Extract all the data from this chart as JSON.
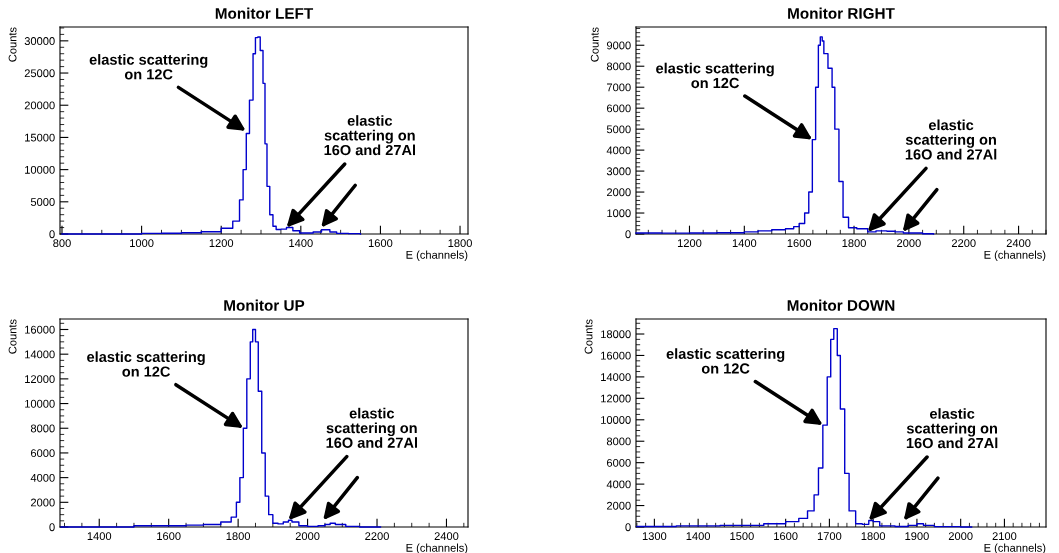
{
  "chart_data": [
    {
      "type": "step",
      "title": "Monitor LEFT",
      "xlabel": "E (channels)",
      "ylabel": "Counts",
      "xlim": [
        795,
        1820
      ],
      "ylim": [
        0,
        32150
      ],
      "xticks": [
        800,
        1000,
        1200,
        1400,
        1600,
        1800
      ],
      "yticks": [
        0,
        5000,
        10000,
        15000,
        20000,
        25000,
        30000
      ],
      "grid": false,
      "legend": false,
      "annotations": [
        {
          "text": "elastic scattering\non 12C",
          "x": 1262,
          "y": 16000
        },
        {
          "text": "elastic\nscattering on\n16O and 27Al",
          "x": 1364,
          "y": 1000
        }
      ],
      "series": [
        {
          "color": "#0000cc",
          "x": [
            800,
            900,
            995,
            1000,
            1050,
            1100,
            1150,
            1200,
            1229,
            1246,
            1255,
            1263,
            1271,
            1280,
            1286,
            1292,
            1298,
            1305,
            1310,
            1315,
            1322,
            1330,
            1338,
            1350,
            1364,
            1380,
            1397,
            1415,
            1431,
            1452,
            1473,
            1490,
            1520,
            1550
          ],
          "values": [
            0,
            0,
            0,
            100,
            120,
            200,
            350,
            900,
            2000,
            5300,
            10000,
            15600,
            20800,
            28000,
            30500,
            30600,
            28500,
            23400,
            14000,
            7400,
            3000,
            1200,
            700,
            750,
            1000,
            500,
            150,
            150,
            300,
            650,
            300,
            100,
            50,
            0
          ]
        }
      ]
    },
    {
      "type": "step",
      "title": "Monitor RIGHT",
      "xlabel": "E (channels)",
      "ylabel": "Counts",
      "xlim": [
        1005,
        2500
      ],
      "ylim": [
        0,
        9870
      ],
      "xticks": [
        1200,
        1400,
        1600,
        1800,
        2000,
        2200,
        2400
      ],
      "yticks": [
        0,
        1000,
        2000,
        3000,
        4000,
        5000,
        6000,
        7000,
        8000,
        9000
      ],
      "grid": false,
      "legend": false,
      "annotations": [
        {
          "text": "elastic scattering\non 12C",
          "x": 1648,
          "y": 4500
        },
        {
          "text": "elastic\nscattering on\n16O and 27Al",
          "x": 1850,
          "y": 100
        }
      ],
      "series": [
        {
          "color": "#0000cc",
          "x": [
            1005,
            1100,
            1200,
            1300,
            1400,
            1450,
            1500,
            1550,
            1580,
            1600,
            1620,
            1635,
            1648,
            1660,
            1670,
            1677,
            1684,
            1690,
            1705,
            1720,
            1730,
            1745,
            1760,
            1780,
            1810,
            1825,
            1850,
            1880,
            1920,
            1950,
            1980,
            2050,
            2090
          ],
          "values": [
            50,
            40,
            50,
            60,
            100,
            150,
            200,
            250,
            350,
            500,
            1000,
            2000,
            4500,
            7000,
            9000,
            9400,
            9200,
            8600,
            7900,
            7000,
            5000,
            2500,
            800,
            300,
            250,
            250,
            100,
            150,
            130,
            100,
            50,
            10,
            0
          ]
        }
      ]
    },
    {
      "type": "step",
      "title": "Monitor UP",
      "xlabel": "E (channels)",
      "ylabel": "Counts",
      "xlim": [
        1287,
        2462
      ],
      "ylim": [
        0,
        16850
      ],
      "xticks": [
        1400,
        1600,
        1800,
        2000,
        2200,
        2400
      ],
      "yticks": [
        0,
        2000,
        4000,
        6000,
        8000,
        10000,
        12000,
        14000,
        16000
      ],
      "grid": false,
      "legend": false,
      "annotations": [
        {
          "text": "elastic scattering\non 12C",
          "x": 1815,
          "y": 8000
        },
        {
          "text": "elastic\nscattering on\n16O and 27Al",
          "x": 1945,
          "y": 550
        }
      ],
      "series": [
        {
          "color": "#0000cc",
          "x": [
            1290,
            1400,
            1490,
            1500,
            1600,
            1650,
            1700,
            1750,
            1780,
            1795,
            1805,
            1815,
            1825,
            1835,
            1842,
            1850,
            1858,
            1868,
            1878,
            1888,
            1900,
            1915,
            1930,
            1945,
            1955,
            1975,
            2000,
            2030,
            2050,
            2065,
            2080,
            2110,
            2150,
            2210
          ],
          "values": [
            0,
            0,
            0,
            100,
            100,
            150,
            200,
            400,
            800,
            2000,
            4000,
            8000,
            12000,
            15000,
            16000,
            15000,
            11000,
            6000,
            2500,
            1000,
            300,
            250,
            400,
            550,
            400,
            100,
            50,
            100,
            200,
            300,
            200,
            50,
            0,
            0
          ]
        }
      ]
    },
    {
      "type": "step",
      "title": "Monitor DOWN",
      "xlabel": "E (channels)",
      "ylabel": "Counts",
      "xlim": [
        1258,
        2195
      ],
      "ylim": [
        0,
        19400
      ],
      "xticks": [
        1300,
        1400,
        1500,
        1600,
        1700,
        1800,
        1900,
        2000,
        2100
      ],
      "yticks": [
        0,
        2000,
        4000,
        6000,
        8000,
        10000,
        12000,
        14000,
        16000,
        18000
      ],
      "grid": false,
      "legend": false,
      "annotations": [
        {
          "text": "elastic scattering\non 12C",
          "x": 1685,
          "y": 9500
        },
        {
          "text": "elastic\nscattering on\n16O and 27Al",
          "x": 1790,
          "y": 600
        }
      ],
      "series": [
        {
          "color": "#0000cc",
          "x": [
            1260,
            1350,
            1450,
            1550,
            1600,
            1630,
            1650,
            1665,
            1675,
            1685,
            1695,
            1703,
            1710,
            1718,
            1725,
            1735,
            1745,
            1760,
            1775,
            1790,
            1800,
            1815,
            1850,
            1880,
            1900,
            1915,
            1940,
            2000,
            2025
          ],
          "values": [
            50,
            100,
            150,
            300,
            500,
            800,
            1500,
            3000,
            5500,
            9500,
            14000,
            17500,
            18500,
            16000,
            11000,
            5000,
            1500,
            300,
            250,
            600,
            500,
            100,
            50,
            150,
            300,
            150,
            30,
            0,
            0
          ]
        }
      ]
    }
  ]
}
